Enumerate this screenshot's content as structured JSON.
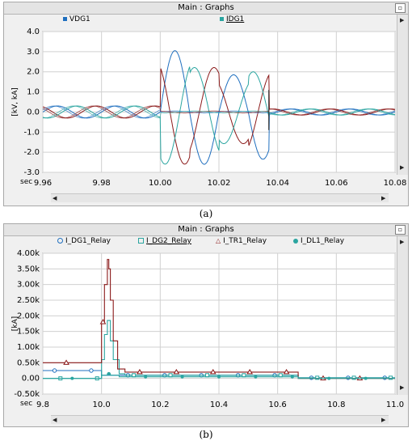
{
  "panels": [
    {
      "title": "Main : Graphs",
      "caption": "(a)",
      "legend": [
        {
          "label": "VDG1",
          "color": "#1f6fbf",
          "marker": "square"
        },
        {
          "label": "IDG1",
          "color": "#2aa5a0",
          "marker": "square"
        }
      ]
    },
    {
      "title": "Main : Graphs",
      "caption": "(b)",
      "legend": [
        {
          "label": "I_DG1_Relay",
          "color": "#1f6fbf",
          "marker": "circle"
        },
        {
          "label": "I_DG2_Relay",
          "color": "#2aa5a0",
          "marker": "square"
        },
        {
          "label": "I_TR1_Relay",
          "color": "#8b1a1a",
          "marker": "triangle"
        },
        {
          "label": "I_DL1_Relay",
          "color": "#2aa5a0",
          "marker": "dot"
        }
      ]
    }
  ],
  "chart_data": [
    {
      "type": "line",
      "title": "Main : Graphs",
      "ylabel": "[kV, kA]",
      "xlabel": "sec",
      "xlim": [
        9.96,
        10.08
      ],
      "ylim": [
        -3.0,
        4.0
      ],
      "x_ticks": [
        "9.96",
        "9.98",
        "10.00",
        "10.02",
        "10.04",
        "10.06",
        "10.08"
      ],
      "y_ticks": [
        "4.0",
        "3.0",
        "2.0",
        "1.0",
        "0.0",
        "-1.0",
        "-2.0",
        "-3.0"
      ],
      "grid": true,
      "fault_start": 10.0,
      "fault_clear": 10.037,
      "frequency_hz": 50,
      "series": [
        {
          "name": "VDG1",
          "pre_fault_amplitude": 0.3,
          "fault_amplitude": 0.05,
          "post_fault_amplitude": 0.15
        },
        {
          "name": "IDG1",
          "pre_fault_amplitude": 0.3,
          "fault_peaks": [
            3.05,
            -2.6,
            1.85,
            -2.35,
            1.8,
            -1.9,
            1.6
          ],
          "post_fault_amplitude": 0.15
        }
      ]
    },
    {
      "type": "line",
      "title": "Main : Graphs",
      "ylabel": "[kA]",
      "xlabel": "sec",
      "xlim": [
        9.8,
        11.0
      ],
      "ylim": [
        -0.5,
        4.0
      ],
      "x_ticks": [
        "9.8",
        "10.0",
        "10.2",
        "10.4",
        "10.6",
        "10.8",
        "11.0"
      ],
      "y_ticks": [
        "4.00k",
        "3.50k",
        "3.00k",
        "2.50k",
        "2.00k",
        "1.50k",
        "1.00k",
        "0.50k",
        "0.00",
        "-0.50k"
      ],
      "grid": true,
      "series": [
        {
          "name": "I_DG1_Relay",
          "x": [
            9.8,
            9.99,
            10.0,
            10.06,
            10.08,
            10.6,
            10.65,
            10.67,
            11.0
          ],
          "y": [
            0.25,
            0.25,
            0.1,
            0.1,
            0.1,
            0.1,
            0.1,
            0.02,
            0.02
          ]
        },
        {
          "name": "I_DG2_Relay",
          "x": [
            9.8,
            9.99,
            10.0,
            10.01,
            10.02,
            10.03,
            10.04,
            10.06,
            10.08,
            10.6,
            10.65,
            10.67,
            11.0
          ],
          "y": [
            0.0,
            0.0,
            0.6,
            1.4,
            1.85,
            1.2,
            0.6,
            0.15,
            0.1,
            0.1,
            0.1,
            0.02,
            0.02
          ]
        },
        {
          "name": "I_TR1_Relay",
          "x": [
            9.8,
            9.99,
            10.0,
            10.01,
            10.02,
            10.025,
            10.03,
            10.04,
            10.055,
            10.08,
            10.6,
            10.65,
            10.67,
            11.0
          ],
          "y": [
            0.5,
            0.5,
            1.8,
            3.0,
            3.8,
            3.5,
            2.5,
            1.2,
            0.3,
            0.2,
            0.2,
            0.2,
            0.0,
            0.0
          ]
        },
        {
          "name": "I_DL1_Relay",
          "x": [
            9.8,
            9.99,
            10.0,
            10.02,
            10.03,
            10.06,
            10.08,
            10.6,
            10.65,
            10.67,
            11.0
          ],
          "y": [
            0.0,
            0.0,
            0.1,
            0.15,
            0.1,
            0.05,
            0.05,
            0.05,
            0.05,
            0.0,
            0.0
          ]
        }
      ]
    }
  ]
}
